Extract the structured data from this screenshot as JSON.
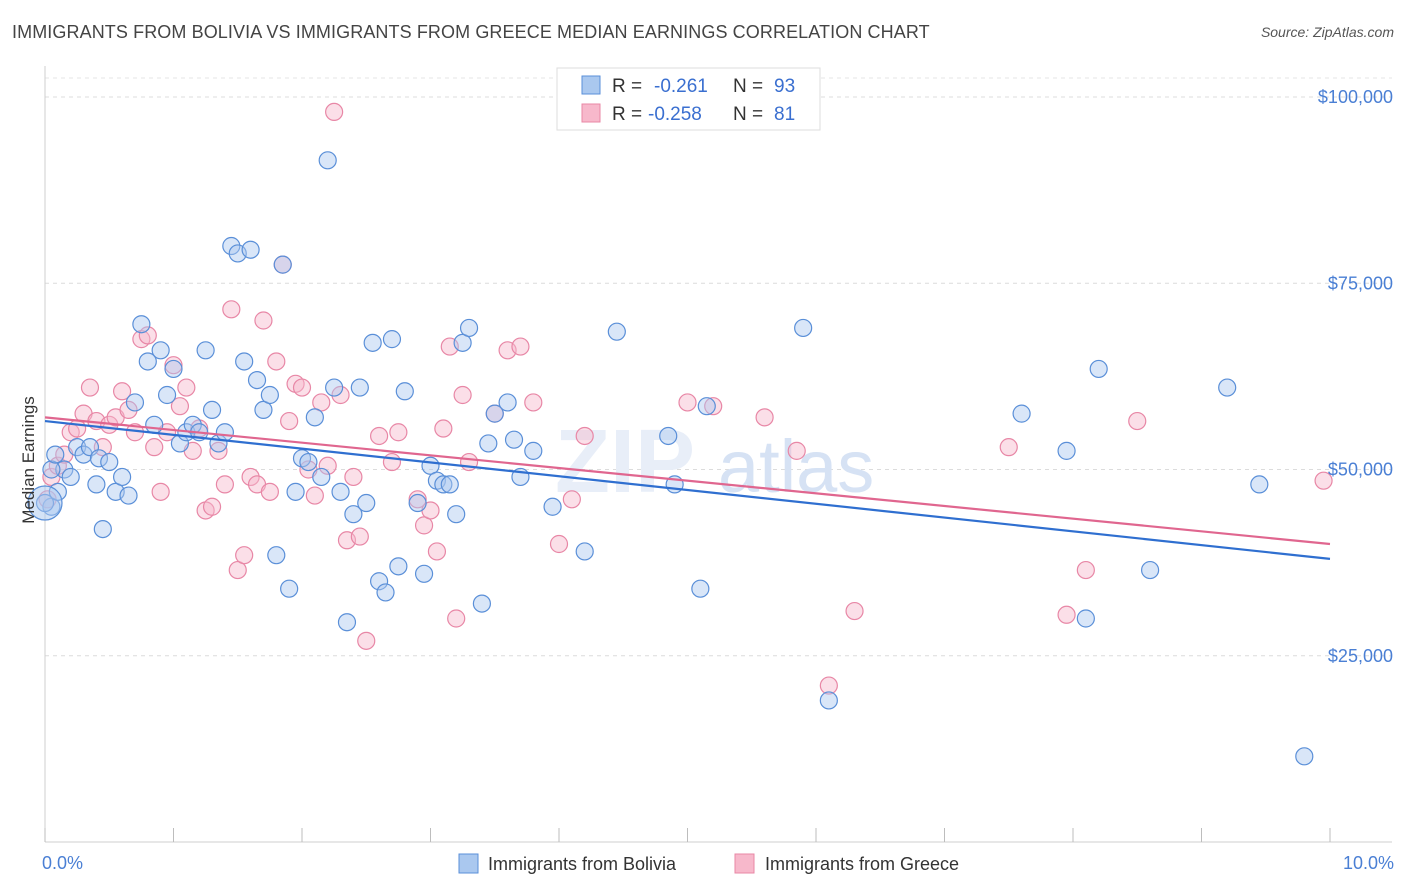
{
  "header": {
    "title": "IMMIGRANTS FROM BOLIVIA VS IMMIGRANTS FROM GREECE MEDIAN EARNINGS CORRELATION CHART",
    "source": "Source: ZipAtlas.com"
  },
  "watermark": {
    "zip": "ZIP",
    "atlas": "atlas"
  },
  "legend": {
    "r_label": "R =",
    "n_label": "N =",
    "entries": [
      {
        "r": "-0.261",
        "n": "93"
      },
      {
        "r": "-0.258",
        "n": "81"
      }
    ]
  },
  "colors": {
    "bolivia_fill": "#aac8ef",
    "bolivia_stroke": "#5a8fd8",
    "bolivia_line": "#2f6fd0",
    "greece_fill": "#f7b8cb",
    "greece_stroke": "#e887a6",
    "greece_line": "#e0668f"
  },
  "chart_data": {
    "type": "scatter",
    "title": "IMMIGRANTS FROM BOLIVIA VS IMMIGRANTS FROM GREECE MEDIAN EARNINGS CORRELATION CHART",
    "xlabel": "",
    "ylabel": "Median Earnings",
    "xlim": [
      0,
      10
    ],
    "ylim": [
      0,
      105000
    ],
    "x_tick_labels": [
      "0.0%",
      "10.0%"
    ],
    "y_ticks": [
      25000,
      50000,
      75000,
      100000
    ],
    "y_tick_labels": [
      "$25,000",
      "$50,000",
      "$75,000",
      "$100,000"
    ],
    "grid": true,
    "series": [
      {
        "name": "Immigrants from Bolivia",
        "trend": {
          "x": [
            0,
            10
          ],
          "y": [
            56500,
            38000
          ]
        },
        "points": [
          [
            0.05,
            45000
          ],
          [
            0.1,
            47000
          ],
          [
            0.15,
            50000
          ],
          [
            0.2,
            49000
          ],
          [
            0.25,
            53000
          ],
          [
            0.3,
            52000
          ],
          [
            0.35,
            53000
          ],
          [
            0.4,
            48000
          ],
          [
            0.42,
            51500
          ],
          [
            0.45,
            42000
          ],
          [
            0.5,
            51000
          ],
          [
            0.55,
            47000
          ],
          [
            0.6,
            49000
          ],
          [
            0.65,
            46500
          ],
          [
            0.7,
            59000
          ],
          [
            0.75,
            69500
          ],
          [
            0.8,
            64500
          ],
          [
            0.85,
            56000
          ],
          [
            0.9,
            66000
          ],
          [
            0.95,
            60000
          ],
          [
            1.0,
            63500
          ],
          [
            1.05,
            53500
          ],
          [
            1.1,
            55000
          ],
          [
            1.15,
            56000
          ],
          [
            1.2,
            55000
          ],
          [
            1.25,
            66000
          ],
          [
            1.3,
            58000
          ],
          [
            1.35,
            53500
          ],
          [
            1.4,
            55000
          ],
          [
            1.45,
            80000
          ],
          [
            1.5,
            79000
          ],
          [
            1.55,
            64500
          ],
          [
            1.6,
            79500
          ],
          [
            1.65,
            62000
          ],
          [
            1.7,
            58000
          ],
          [
            1.75,
            60000
          ],
          [
            1.8,
            38500
          ],
          [
            1.85,
            77500
          ],
          [
            1.9,
            34000
          ],
          [
            1.95,
            47000
          ],
          [
            2.0,
            51500
          ],
          [
            2.05,
            51000
          ],
          [
            2.1,
            57000
          ],
          [
            2.15,
            49000
          ],
          [
            2.2,
            91500
          ],
          [
            2.25,
            61000
          ],
          [
            2.3,
            47000
          ],
          [
            2.35,
            29500
          ],
          [
            2.4,
            44000
          ],
          [
            2.45,
            61000
          ],
          [
            2.5,
            45500
          ],
          [
            2.55,
            67000
          ],
          [
            2.6,
            35000
          ],
          [
            2.65,
            33500
          ],
          [
            2.7,
            67500
          ],
          [
            2.75,
            37000
          ],
          [
            2.8,
            60500
          ],
          [
            2.9,
            45500
          ],
          [
            2.95,
            36000
          ],
          [
            3.0,
            50500
          ],
          [
            3.05,
            48500
          ],
          [
            3.1,
            48000
          ],
          [
            3.15,
            48000
          ],
          [
            3.2,
            44000
          ],
          [
            3.25,
            67000
          ],
          [
            3.3,
            69000
          ],
          [
            3.4,
            32000
          ],
          [
            3.45,
            53500
          ],
          [
            3.5,
            57500
          ],
          [
            3.6,
            59000
          ],
          [
            3.65,
            54000
          ],
          [
            3.7,
            49000
          ],
          [
            3.8,
            52500
          ],
          [
            3.95,
            45000
          ],
          [
            4.2,
            39000
          ],
          [
            4.45,
            68500
          ],
          [
            4.85,
            54500
          ],
          [
            4.9,
            48000
          ],
          [
            5.1,
            34000
          ],
          [
            5.15,
            58500
          ],
          [
            5.9,
            69000
          ],
          [
            6.1,
            19000
          ],
          [
            7.6,
            57500
          ],
          [
            7.95,
            52500
          ],
          [
            8.1,
            30000
          ],
          [
            8.2,
            63500
          ],
          [
            8.6,
            36500
          ],
          [
            9.2,
            61000
          ],
          [
            9.45,
            48000
          ],
          [
            9.8,
            11500
          ],
          [
            0.0,
            45500
          ],
          [
            0.05,
            50000
          ],
          [
            0.08,
            52000
          ]
        ]
      },
      {
        "name": "Immigrants from Greece",
        "trend": {
          "x": [
            0,
            10
          ],
          "y": [
            57000,
            40000
          ]
        },
        "points": [
          [
            0.05,
            49000
          ],
          [
            0.1,
            50500
          ],
          [
            0.15,
            52000
          ],
          [
            0.2,
            55000
          ],
          [
            0.25,
            55500
          ],
          [
            0.3,
            57500
          ],
          [
            0.35,
            61000
          ],
          [
            0.4,
            56500
          ],
          [
            0.45,
            53000
          ],
          [
            0.5,
            56000
          ],
          [
            0.55,
            57000
          ],
          [
            0.6,
            60500
          ],
          [
            0.65,
            58000
          ],
          [
            0.7,
            55000
          ],
          [
            0.75,
            67500
          ],
          [
            0.8,
            68000
          ],
          [
            0.85,
            53000
          ],
          [
            0.9,
            47000
          ],
          [
            0.95,
            55000
          ],
          [
            1.0,
            64000
          ],
          [
            1.05,
            58500
          ],
          [
            1.1,
            61000
          ],
          [
            1.15,
            52500
          ],
          [
            1.2,
            55500
          ],
          [
            1.25,
            44500
          ],
          [
            1.3,
            45000
          ],
          [
            1.35,
            52500
          ],
          [
            1.4,
            48000
          ],
          [
            1.45,
            71500
          ],
          [
            1.5,
            36500
          ],
          [
            1.55,
            38500
          ],
          [
            1.6,
            49000
          ],
          [
            1.65,
            48000
          ],
          [
            1.7,
            70000
          ],
          [
            1.75,
            47000
          ],
          [
            1.8,
            64500
          ],
          [
            1.85,
            77500
          ],
          [
            1.9,
            56500
          ],
          [
            1.95,
            61500
          ],
          [
            2.0,
            61000
          ],
          [
            2.05,
            50000
          ],
          [
            2.1,
            46500
          ],
          [
            2.15,
            59000
          ],
          [
            2.2,
            50500
          ],
          [
            2.25,
            98000
          ],
          [
            2.3,
            60000
          ],
          [
            2.35,
            40500
          ],
          [
            2.4,
            49000
          ],
          [
            2.45,
            41000
          ],
          [
            2.5,
            27000
          ],
          [
            2.6,
            54500
          ],
          [
            2.7,
            51000
          ],
          [
            2.75,
            55000
          ],
          [
            2.9,
            46000
          ],
          [
            2.95,
            42500
          ],
          [
            3.0,
            44500
          ],
          [
            3.05,
            39000
          ],
          [
            3.1,
            55500
          ],
          [
            3.15,
            66500
          ],
          [
            3.2,
            30000
          ],
          [
            3.25,
            60000
          ],
          [
            3.3,
            51000
          ],
          [
            3.5,
            57500
          ],
          [
            3.6,
            66000
          ],
          [
            3.7,
            66500
          ],
          [
            3.8,
            59000
          ],
          [
            4.0,
            40000
          ],
          [
            4.1,
            46000
          ],
          [
            4.2,
            54500
          ],
          [
            5.0,
            59000
          ],
          [
            5.2,
            58500
          ],
          [
            5.6,
            57000
          ],
          [
            5.85,
            52500
          ],
          [
            6.1,
            21000
          ],
          [
            6.3,
            31000
          ],
          [
            7.5,
            53000
          ],
          [
            7.95,
            30500
          ],
          [
            8.1,
            36500
          ],
          [
            8.5,
            56500
          ],
          [
            9.95,
            48500
          ],
          [
            0.02,
            46000
          ]
        ]
      }
    ]
  },
  "bottom_legend": [
    "Immigrants from Bolivia",
    "Immigrants from Greece"
  ]
}
